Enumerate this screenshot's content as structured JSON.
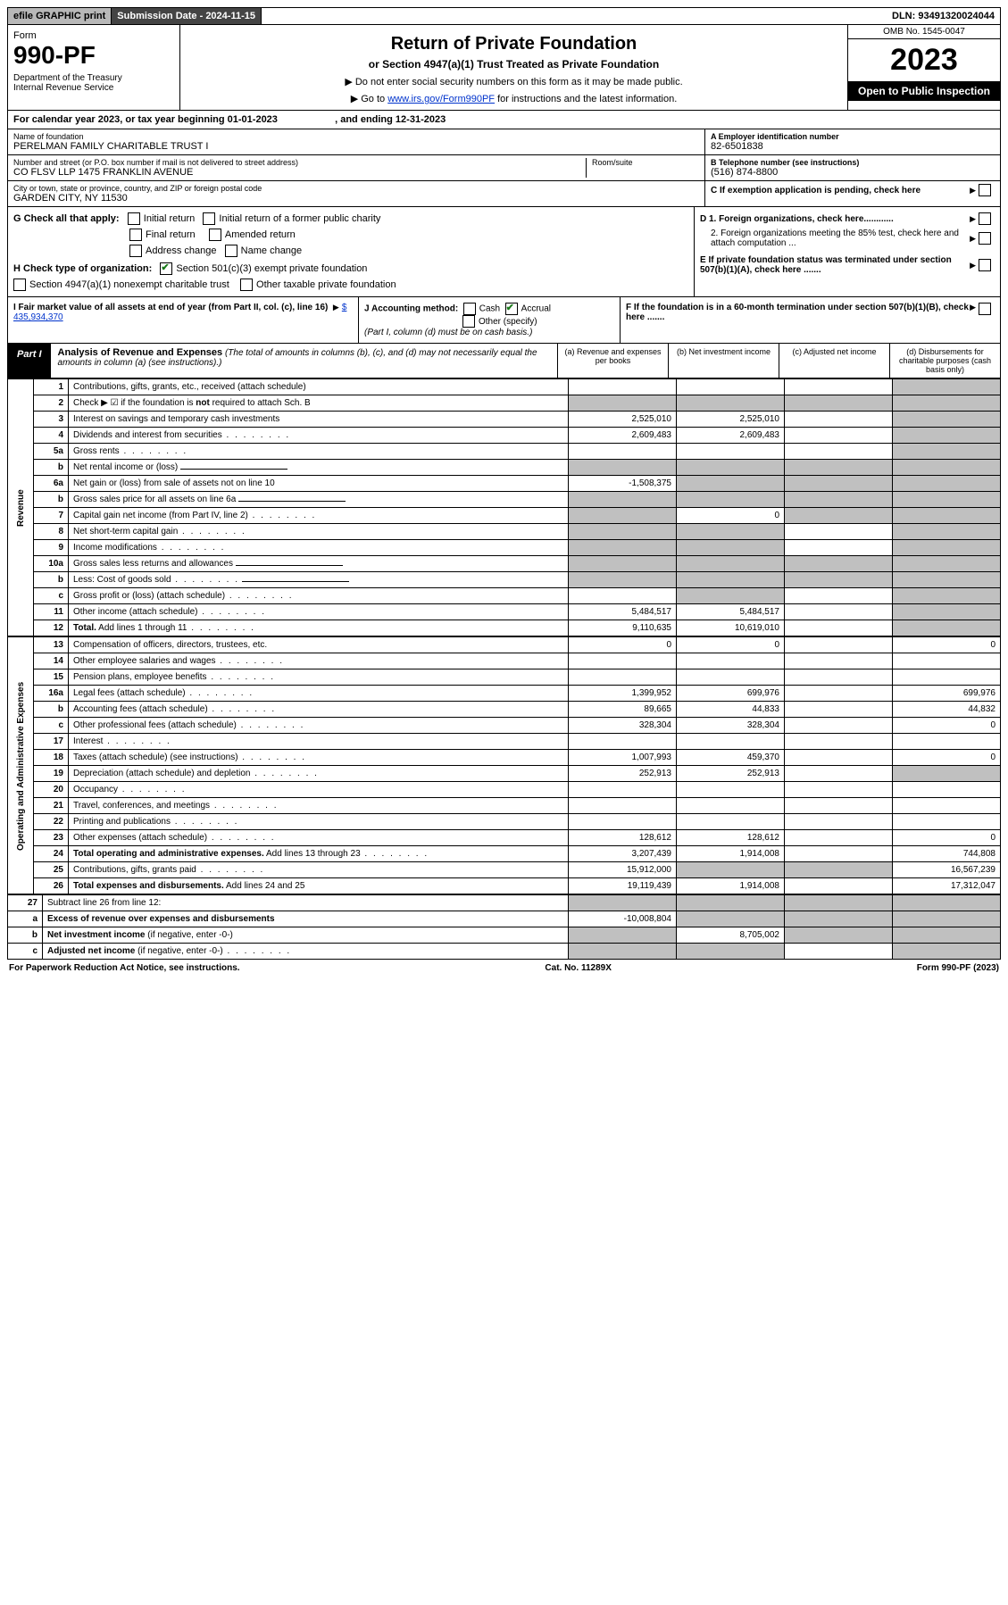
{
  "topbar": {
    "efile": "efile GRAPHIC print",
    "subdate": "Submission Date - 2024-11-15",
    "dln": "DLN: 93491320024044"
  },
  "header": {
    "form_label": "Form",
    "form_no": "990-PF",
    "dept": "Department of the Treasury\nInternal Revenue Service",
    "title": "Return of Private Foundation",
    "subtitle": "or Section 4947(a)(1) Trust Treated as Private Foundation",
    "note1": "▶ Do not enter social security numbers on this form as it may be made public.",
    "note2_pre": "▶ Go to ",
    "note2_link": "www.irs.gov/Form990PF",
    "note2_post": " for instructions and the latest information.",
    "omb": "OMB No. 1545-0047",
    "year": "2023",
    "open": "Open to Public Inspection"
  },
  "calyear": "For calendar year 2023, or tax year beginning 01-01-2023                     , and ending 12-31-2023",
  "ident": {
    "name_label": "Name of foundation",
    "name": "PERELMAN FAMILY CHARITABLE TRUST I",
    "addr_label": "Number and street (or P.O. box number if mail is not delivered to street address)",
    "addr": "CO FLSV LLP 1475 FRANKLIN AVENUE",
    "room_label": "Room/suite",
    "city_label": "City or town, state or province, country, and ZIP or foreign postal code",
    "city": "GARDEN CITY, NY  11530",
    "a_label": "A Employer identification number",
    "a_val": "82-6501838",
    "b_label": "B Telephone number (see instructions)",
    "b_val": "(516) 874-8800",
    "c_label": "C If exemption application is pending, check here"
  },
  "secG": {
    "label": "G Check all that apply:",
    "initial": "Initial return",
    "initial_former": "Initial return of a former public charity",
    "final": "Final return",
    "amended": "Amended return",
    "address": "Address change",
    "name_change": "Name change",
    "h_label": "H Check type of organization:",
    "h_501c3": "Section 501(c)(3) exempt private foundation",
    "h_4947": "Section 4947(a)(1) nonexempt charitable trust",
    "h_other": "Other taxable private foundation",
    "d1": "D 1. Foreign organizations, check here............",
    "d2": "2. Foreign organizations meeting the 85% test, check here and attach computation ...",
    "e": "E  If private foundation status was terminated under section 507(b)(1)(A), check here .......",
    "i_label": "I Fair market value of all assets at end of year (from Part II, col. (c), line 16)",
    "i_val": "$  435,934,370",
    "j_label": "J Accounting method:",
    "j_cash": "Cash",
    "j_accrual": "Accrual",
    "j_other": "Other (specify)",
    "j_note": "(Part I, column (d) must be on cash basis.)",
    "f": "F  If the foundation is in a 60-month termination under section 507(b)(1)(B), check here ......."
  },
  "part1": {
    "label": "Part I",
    "title": "Analysis of Revenue and Expenses",
    "note": "(The total of amounts in columns (b), (c), and (d) may not necessarily equal the amounts in column (a) (see instructions).)",
    "cols": {
      "a": "(a)   Revenue and expenses per books",
      "b": "(b)   Net investment income",
      "c": "(c)   Adjusted net income",
      "d": "(d)   Disbursements for charitable purposes (cash basis only)"
    }
  },
  "sides": {
    "revenue": "Revenue",
    "expenses": "Operating and Administrative Expenses"
  },
  "rows": [
    {
      "n": "1",
      "desc": "Contributions, gifts, grants, etc., received (attach schedule)",
      "a": "",
      "b": "",
      "c": "",
      "d": "",
      "greyD": true
    },
    {
      "n": "2",
      "desc": "Check ▶ ☑ if the foundation is <b>not</b> required to attach Sch. B",
      "a": "",
      "b": "",
      "c": "",
      "d": "",
      "greyAll": true,
      "dotsAfter": true
    },
    {
      "n": "3",
      "desc": "Interest on savings and temporary cash investments",
      "a": "2,525,010",
      "b": "2,525,010",
      "c": "",
      "d": "",
      "greyD": true
    },
    {
      "n": "4",
      "desc": "Dividends and interest from securities",
      "a": "2,609,483",
      "b": "2,609,483",
      "c": "",
      "d": "",
      "greyD": true,
      "dots": true
    },
    {
      "n": "5a",
      "desc": "Gross rents",
      "a": "",
      "b": "",
      "c": "",
      "d": "",
      "greyD": true,
      "dots": true
    },
    {
      "n": "b",
      "desc": "Net rental income or (loss)",
      "a": "",
      "b": "",
      "c": "",
      "d": "",
      "greyAll": true,
      "inlineBox": true
    },
    {
      "n": "6a",
      "desc": "Net gain or (loss) from sale of assets not on line 10",
      "a": "-1,508,375",
      "b": "",
      "c": "",
      "d": "",
      "greyBCD": true
    },
    {
      "n": "b",
      "desc": "Gross sales price for all assets on line 6a",
      "a": "",
      "b": "",
      "c": "",
      "d": "",
      "greyAll": true,
      "inlineBox": true
    },
    {
      "n": "7",
      "desc": "Capital gain net income (from Part IV, line 2)",
      "a": "",
      "b": "0",
      "c": "",
      "d": "",
      "greyACD": true,
      "dots": true
    },
    {
      "n": "8",
      "desc": "Net short-term capital gain",
      "a": "",
      "b": "",
      "c": "",
      "d": "",
      "greyABD": true,
      "dots": true
    },
    {
      "n": "9",
      "desc": "Income modifications",
      "a": "",
      "b": "",
      "c": "",
      "d": "",
      "greyABD": true,
      "dots": true
    },
    {
      "n": "10a",
      "desc": "Gross sales less returns and allowances",
      "a": "",
      "b": "",
      "c": "",
      "d": "",
      "greyAll": true,
      "inlineBox": true
    },
    {
      "n": "b",
      "desc": "Less: Cost of goods sold",
      "a": "",
      "b": "",
      "c": "",
      "d": "",
      "greyAll": true,
      "inlineBox": true,
      "dots": true
    },
    {
      "n": "c",
      "desc": "Gross profit or (loss) (attach schedule)",
      "a": "",
      "b": "",
      "c": "",
      "d": "",
      "greyBD": true,
      "dots": true
    },
    {
      "n": "11",
      "desc": "Other income (attach schedule)",
      "a": "5,484,517",
      "b": "5,484,517",
      "c": "",
      "d": "",
      "greyD": true,
      "dots": true
    },
    {
      "n": "12",
      "desc": "<b>Total.</b> Add lines 1 through 11",
      "a": "9,110,635",
      "b": "10,619,010",
      "c": "",
      "d": "",
      "greyD": true,
      "dots": true
    }
  ],
  "exp_rows": [
    {
      "n": "13",
      "desc": "Compensation of officers, directors, trustees, etc.",
      "a": "0",
      "b": "0",
      "c": "",
      "d": "0"
    },
    {
      "n": "14",
      "desc": "Other employee salaries and wages",
      "a": "",
      "b": "",
      "c": "",
      "d": "",
      "dots": true
    },
    {
      "n": "15",
      "desc": "Pension plans, employee benefits",
      "a": "",
      "b": "",
      "c": "",
      "d": "",
      "dots": true
    },
    {
      "n": "16a",
      "desc": "Legal fees (attach schedule)",
      "a": "1,399,952",
      "b": "699,976",
      "c": "",
      "d": "699,976",
      "dots": true
    },
    {
      "n": "b",
      "desc": "Accounting fees (attach schedule)",
      "a": "89,665",
      "b": "44,833",
      "c": "",
      "d": "44,832",
      "dots": true
    },
    {
      "n": "c",
      "desc": "Other professional fees (attach schedule)",
      "a": "328,304",
      "b": "328,304",
      "c": "",
      "d": "0",
      "dots": true
    },
    {
      "n": "17",
      "desc": "Interest",
      "a": "",
      "b": "",
      "c": "",
      "d": "",
      "dots": true
    },
    {
      "n": "18",
      "desc": "Taxes (attach schedule) (see instructions)",
      "a": "1,007,993",
      "b": "459,370",
      "c": "",
      "d": "0",
      "dots": true
    },
    {
      "n": "19",
      "desc": "Depreciation (attach schedule) and depletion",
      "a": "252,913",
      "b": "252,913",
      "c": "",
      "d": "",
      "greyD": true,
      "dots": true
    },
    {
      "n": "20",
      "desc": "Occupancy",
      "a": "",
      "b": "",
      "c": "",
      "d": "",
      "dots": true
    },
    {
      "n": "21",
      "desc": "Travel, conferences, and meetings",
      "a": "",
      "b": "",
      "c": "",
      "d": "",
      "dots": true
    },
    {
      "n": "22",
      "desc": "Printing and publications",
      "a": "",
      "b": "",
      "c": "",
      "d": "",
      "dots": true
    },
    {
      "n": "23",
      "desc": "Other expenses (attach schedule)",
      "a": "128,612",
      "b": "128,612",
      "c": "",
      "d": "0",
      "dots": true
    },
    {
      "n": "24",
      "desc": "<b>Total operating and administrative expenses.</b> Add lines 13 through 23",
      "a": "3,207,439",
      "b": "1,914,008",
      "c": "",
      "d": "744,808",
      "dots": true
    },
    {
      "n": "25",
      "desc": "Contributions, gifts, grants paid",
      "a": "15,912,000",
      "b": "",
      "c": "",
      "d": "16,567,239",
      "greyBC": true,
      "dots": true
    },
    {
      "n": "26",
      "desc": "<b>Total expenses and disbursements.</b> Add lines 24 and 25",
      "a": "19,119,439",
      "b": "1,914,008",
      "c": "",
      "d": "17,312,047"
    }
  ],
  "net_rows": [
    {
      "n": "27",
      "desc": "Subtract line 26 from line 12:",
      "a": "",
      "b": "",
      "c": "",
      "d": "",
      "greyAll": true
    },
    {
      "n": "a",
      "desc": "<b>Excess of revenue over expenses and disbursements</b>",
      "a": "-10,008,804",
      "b": "",
      "c": "",
      "d": "",
      "greyBCD": true
    },
    {
      "n": "b",
      "desc": "<b>Net investment income</b> (if negative, enter -0-)",
      "a": "",
      "b": "8,705,002",
      "c": "",
      "d": "",
      "greyACD": true
    },
    {
      "n": "c",
      "desc": "<b>Adjusted net income</b> (if negative, enter -0-)",
      "a": "",
      "b": "",
      "c": "",
      "d": "",
      "greyABD": true,
      "dots": true
    }
  ],
  "footer": {
    "left": "For Paperwork Reduction Act Notice, see instructions.",
    "mid": "Cat. No. 11289X",
    "right": "Form 990-PF (2023)"
  }
}
